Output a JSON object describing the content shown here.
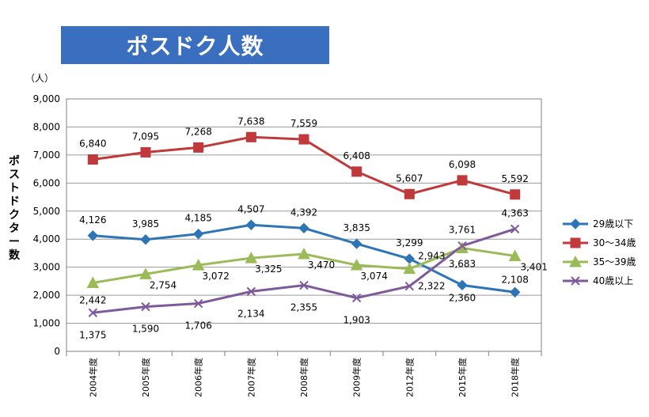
{
  "title": "ポスドク人数",
  "chart_data": {
    "type": "line",
    "title": "ポスドク人数",
    "ylabel": "ポストドクター数",
    "yunit": "（人）",
    "ylim": [
      0,
      9000
    ],
    "ytick_step": 1000,
    "grid": true,
    "legend_position": "right",
    "categories": [
      "2004年度",
      "2005年度",
      "2006年度",
      "2007年度",
      "2008年度",
      "2009年度",
      "2012年度",
      "2015年度",
      "2018年度"
    ],
    "series": [
      {
        "name": "29歳以下",
        "color": "#2e75b6",
        "marker": "diamond",
        "values": [
          4126,
          3985,
          4185,
          4507,
          4392,
          3835,
          3299,
          2360,
          2108
        ]
      },
      {
        "name": "30～34歳",
        "color": "#c0393b",
        "marker": "square",
        "values": [
          6840,
          7095,
          7268,
          7638,
          7559,
          6408,
          5607,
          6098,
          5592
        ]
      },
      {
        "name": "35～39歳",
        "color": "#9bbb59",
        "marker": "triangle",
        "values": [
          2442,
          2754,
          3072,
          3325,
          3470,
          3074,
          2943,
          3683,
          3401
        ]
      },
      {
        "name": "40歳以上",
        "color": "#7e5a9b",
        "marker": "x",
        "values": [
          1375,
          1590,
          1706,
          2134,
          2355,
          1903,
          2322,
          3761,
          4363
        ]
      }
    ]
  }
}
